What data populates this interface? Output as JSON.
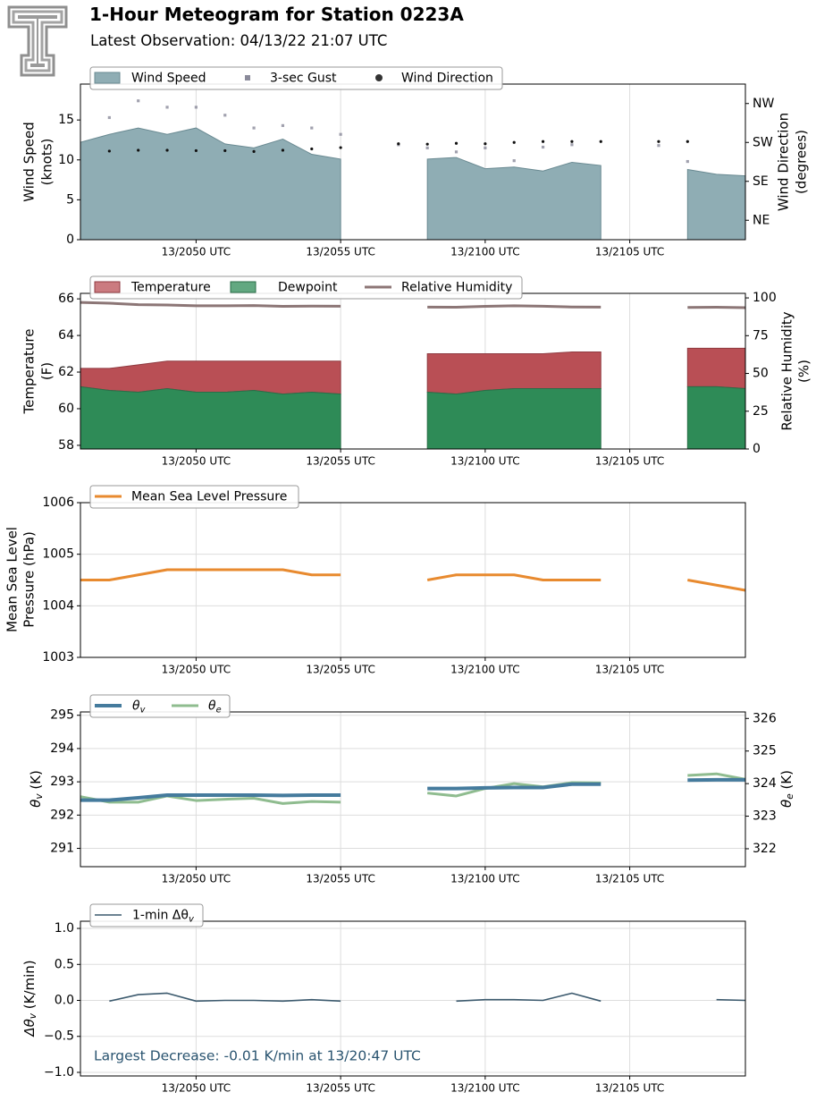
{
  "header": {
    "title": "1-Hour Meteogram for Station 0223A",
    "subtitle": "Latest Observation: 04/13/22 21:07 UTC"
  },
  "colors": {
    "wind_speed": "#8fadb4",
    "gust": "#8a8a9a",
    "wind_dir": "#111111",
    "temperature": "#b94f55",
    "dewpoint": "#2e8b57",
    "rh": "#8c7676",
    "mslp": "#e88a2f",
    "theta_v": "#457b9d",
    "theta_e": "#8fbc8f",
    "dtheta": "#3c5a6e",
    "annotation": "#2a5470",
    "grid": "#dddddd"
  },
  "chart_data": [
    {
      "type": "area",
      "panel": "wind",
      "ylabel": [
        "Wind Speed",
        "(knots)"
      ],
      "y2label": [
        "Wind Direction",
        "(degrees)"
      ],
      "ylim": [
        0,
        19.5
      ],
      "y2lim": [
        0,
        360
      ],
      "yticks": [
        0,
        5,
        10,
        15
      ],
      "y2ticks": [
        {
          "v": 45,
          "label": "NE"
        },
        {
          "v": 135,
          "label": "SE"
        },
        {
          "v": 225,
          "label": "SW"
        },
        {
          "v": 315,
          "label": "NW"
        }
      ],
      "x_ticks": [
        "13/2050 UTC",
        "13/2055 UTC",
        "13/2100 UTC",
        "13/2105 UTC"
      ],
      "legend": [
        "Wind Speed",
        "3-sec Gust",
        "Wind Direction"
      ],
      "series": [
        {
          "name": "Wind Speed",
          "values": [
            12.2,
            13.2,
            14.0,
            13.2,
            14.0,
            12.0,
            11.5,
            12.6,
            10.7,
            10.1,
            null,
            null,
            10.1,
            10.3,
            8.9,
            9.1,
            8.6,
            9.7,
            9.3,
            null,
            null,
            8.8,
            8.2,
            8.0
          ]
        },
        {
          "name": "3-sec Gust",
          "values": [
            null,
            15.3,
            17.4,
            16.6,
            16.6,
            15.6,
            14.0,
            14.3,
            14.0,
            13.2,
            null,
            11.9,
            11.5,
            11.0,
            11.5,
            9.9,
            11.6,
            11.9,
            null,
            null,
            11.8,
            9.8,
            null,
            null
          ]
        },
        {
          "name": "Wind Direction",
          "values": [
            null,
            205,
            207,
            207,
            206,
            206,
            204,
            207,
            210,
            213,
            null,
            222,
            221,
            223,
            222,
            225,
            227,
            227,
            227,
            null,
            227,
            227,
            null,
            null
          ]
        }
      ]
    },
    {
      "type": "area",
      "panel": "temperature",
      "ylabel": [
        "Temperature",
        "(F)"
      ],
      "y2label": [
        "Relative Humidity",
        "(%)"
      ],
      "ylim": [
        57.8,
        66.3
      ],
      "y2lim": [
        0,
        103
      ],
      "yticks": [
        58,
        60,
        62,
        64,
        66
      ],
      "y2ticks": [
        0,
        25,
        50,
        75,
        100
      ],
      "x_ticks": [
        "13/2050 UTC",
        "13/2055 UTC",
        "13/2100 UTC",
        "13/2105 UTC"
      ],
      "legend": [
        "Temperature",
        "Dewpoint",
        "Relative Humidity"
      ],
      "series": [
        {
          "name": "Temperature",
          "values": [
            62.2,
            62.2,
            62.4,
            62.6,
            62.6,
            62.6,
            62.6,
            62.6,
            62.6,
            62.6,
            null,
            null,
            63.0,
            63.0,
            63.0,
            63.0,
            63.0,
            63.1,
            63.1,
            null,
            null,
            63.3,
            63.3,
            63.3
          ]
        },
        {
          "name": "Dewpoint",
          "values": [
            61.2,
            61.0,
            60.9,
            61.1,
            60.9,
            60.9,
            61.0,
            60.8,
            60.9,
            60.8,
            null,
            null,
            60.9,
            60.8,
            61.0,
            61.1,
            61.1,
            61.1,
            61.1,
            null,
            null,
            61.2,
            61.2,
            61.1
          ]
        },
        {
          "name": "Relative Humidity",
          "values": [
            97,
            96.5,
            95.5,
            95.3,
            94.8,
            94.8,
            94.9,
            94.4,
            94.6,
            94.5,
            null,
            null,
            93.9,
            93.8,
            94.4,
            94.8,
            94.5,
            94.0,
            93.9,
            null,
            null,
            93.7,
            93.8,
            93.5
          ]
        }
      ]
    },
    {
      "type": "line",
      "panel": "pressure",
      "ylabel": [
        "Mean Sea Level",
        "Pressure (hPa)"
      ],
      "ylim": [
        1003,
        1006
      ],
      "yticks": [
        1003,
        1004,
        1005,
        1006
      ],
      "x_ticks": [
        "13/2050 UTC",
        "13/2055 UTC",
        "13/2100 UTC",
        "13/2105 UTC"
      ],
      "legend": [
        "Mean Sea Level Pressure"
      ],
      "series": [
        {
          "name": "Mean Sea Level Pressure",
          "values": [
            1004.5,
            1004.5,
            1004.6,
            1004.7,
            1004.7,
            1004.7,
            1004.7,
            1004.7,
            1004.6,
            1004.6,
            null,
            null,
            1004.5,
            1004.6,
            1004.6,
            1004.6,
            1004.5,
            1004.5,
            1004.5,
            null,
            null,
            1004.5,
            1004.4,
            1004.3
          ]
        }
      ]
    },
    {
      "type": "line",
      "panel": "theta",
      "ylabel": "θv (K)",
      "y2label": "θe (K)",
      "ylim": [
        290.45,
        295.1
      ],
      "y2lim": [
        321.45,
        326.2
      ],
      "yticks": [
        291,
        292,
        293,
        294,
        295
      ],
      "y2ticks": [
        322,
        323,
        324,
        325,
        326
      ],
      "x_ticks": [
        "13/2050 UTC",
        "13/2055 UTC",
        "13/2100 UTC",
        "13/2105 UTC"
      ],
      "legend": [
        "θv",
        "θe"
      ],
      "series": [
        {
          "name": "θv",
          "values": [
            292.45,
            292.45,
            292.52,
            292.6,
            292.6,
            292.6,
            292.6,
            292.59,
            292.6,
            292.6,
            null,
            null,
            292.8,
            292.8,
            292.82,
            292.83,
            292.83,
            292.93,
            292.93,
            null,
            null,
            293.05,
            293.06,
            293.06
          ]
        },
        {
          "name": "θe",
          "values": [
            323.6,
            323.43,
            323.43,
            323.62,
            323.48,
            323.52,
            323.55,
            323.39,
            323.45,
            323.43,
            null,
            null,
            323.71,
            323.62,
            323.85,
            324.0,
            323.9,
            324.03,
            324.02,
            null,
            null,
            324.25,
            324.3,
            324.13
          ]
        }
      ]
    },
    {
      "type": "line",
      "panel": "dtheta",
      "ylabel": "Δθv (K/min)",
      "ylim": [
        -1.05,
        1.1
      ],
      "yticks": [
        -1.0,
        -0.5,
        0.0,
        0.5,
        1.0
      ],
      "x_ticks": [
        "13/2050 UTC",
        "13/2055 UTC",
        "13/2100 UTC",
        "13/2105 UTC"
      ],
      "legend": [
        "1-min Δθv"
      ],
      "annotation": "Largest Decrease: -0.01 K/min at 13/20:47 UTC",
      "series": [
        {
          "name": "1-min Δθv",
          "values": [
            null,
            -0.01,
            0.08,
            0.1,
            -0.01,
            0.0,
            0.0,
            -0.01,
            0.01,
            -0.01,
            null,
            null,
            null,
            -0.01,
            0.01,
            0.01,
            0.0,
            0.1,
            -0.01,
            null,
            null,
            null,
            0.01,
            0.0
          ]
        }
      ]
    }
  ]
}
